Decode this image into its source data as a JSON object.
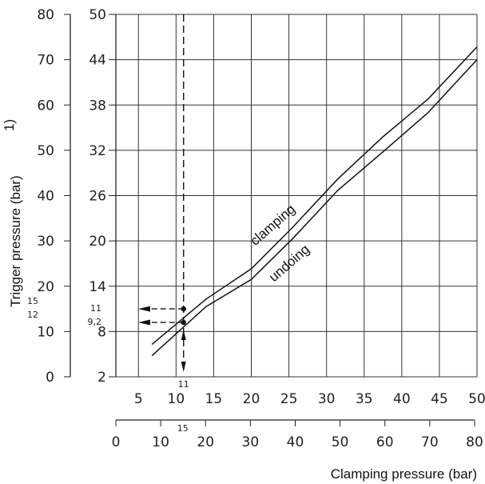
{
  "chart_data": {
    "type": "line",
    "xlabel": "Clamping pressure (bar)",
    "ylabel": "Trigger pressure (bar)",
    "ylabel_superscript": "1)",
    "x_axis_main": {
      "range": [
        2,
        50
      ],
      "ticks": [
        5,
        10,
        15,
        20,
        25,
        30,
        35,
        40,
        45,
        50
      ],
      "tick_labels": [
        "5",
        "10",
        "15",
        "20",
        "25",
        "30",
        "35",
        "40",
        "45",
        "50"
      ]
    },
    "x_axis_secondary": {
      "range": [
        0,
        80
      ],
      "ticks": [
        0,
        10,
        20,
        30,
        40,
        50,
        60,
        70,
        80
      ],
      "tick_labels": [
        "0",
        "10",
        "20",
        "30",
        "40",
        "50",
        "60",
        "70",
        "80"
      ]
    },
    "y_axis_inner": {
      "range": [
        2,
        50
      ],
      "ticks": [
        2,
        8,
        14,
        20,
        26,
        32,
        38,
        44,
        50
      ],
      "tick_labels": [
        "2",
        "8",
        "14",
        "20",
        "26",
        "32",
        "38",
        "44",
        "50"
      ]
    },
    "y_axis_outer": {
      "range": [
        0,
        80
      ],
      "ticks": [
        0,
        10,
        20,
        30,
        40,
        50,
        60,
        70,
        80
      ],
      "tick_labels": [
        "0",
        "10",
        "20",
        "30",
        "40",
        "50",
        "60",
        "70",
        "80"
      ]
    },
    "grid": true,
    "series": [
      {
        "name": "clamping",
        "x": [
          6.8,
          14,
          20,
          25.5,
          31.5,
          37.5,
          43.5,
          50
        ],
        "y": [
          6.3,
          12.3,
          16.3,
          21.8,
          28.2,
          33.8,
          38.8,
          45.7
        ]
      },
      {
        "name": "undoing",
        "x": [
          6.8,
          14,
          20,
          25.5,
          31.5,
          37.5,
          43.5,
          50
        ],
        "y": [
          4.8,
          11.3,
          14.9,
          20.3,
          26.7,
          31.8,
          37.0,
          44.0
        ]
      }
    ],
    "annotations": {
      "point_x": 11,
      "point_x_label": "11",
      "secondary_x_label": "15",
      "points": [
        {
          "y": 11,
          "inner_label": "11",
          "outer_label": "15"
        },
        {
          "y": 9.2,
          "inner_label": "9,2",
          "outer_label": "12"
        }
      ]
    }
  }
}
